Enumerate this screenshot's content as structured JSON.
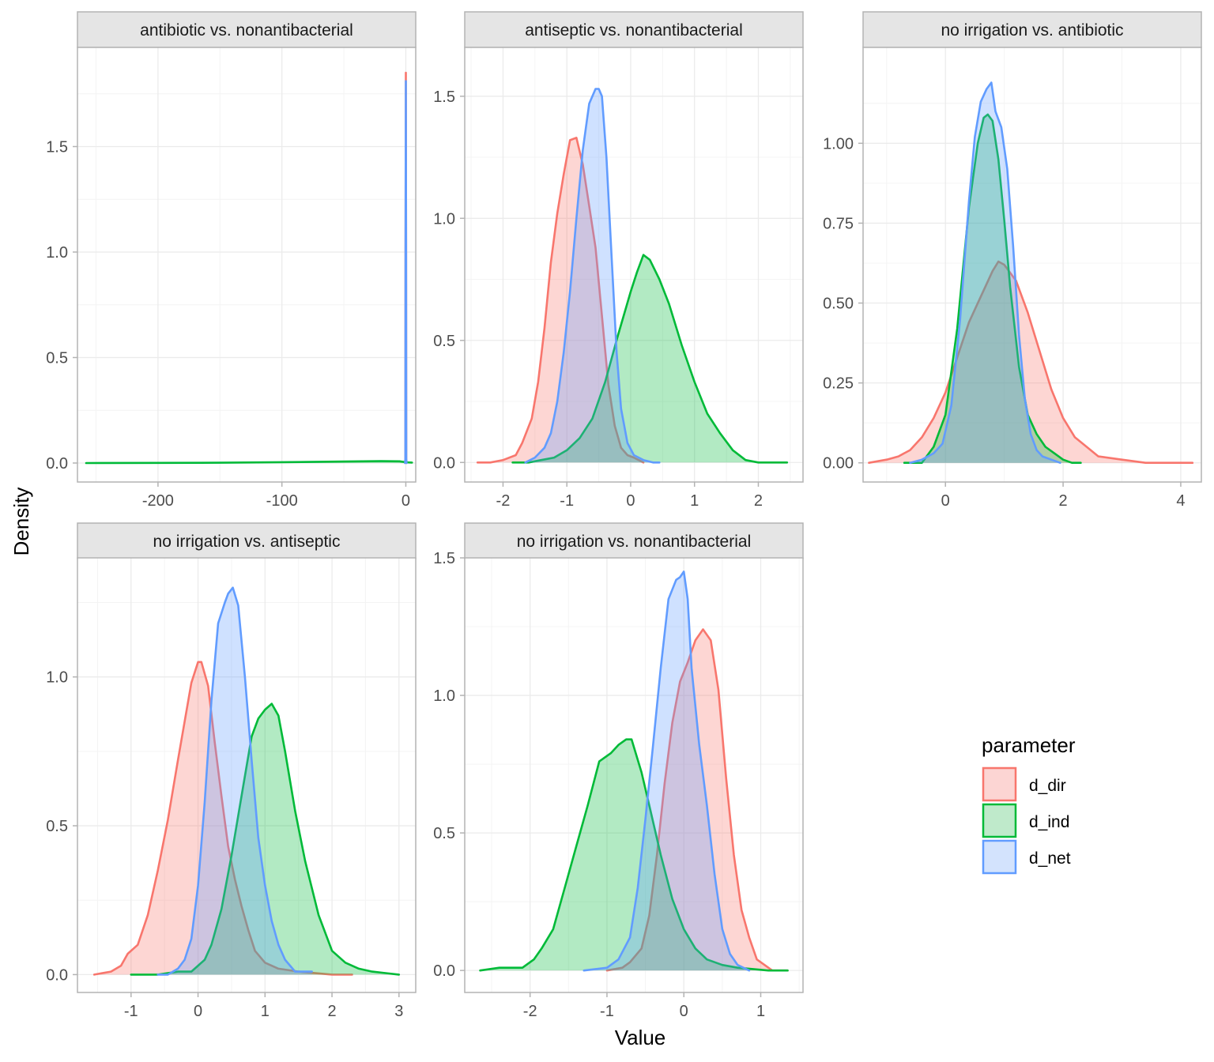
{
  "chart_data": {
    "type": "area",
    "subtype": "faceted density plot",
    "xlabel": "Value",
    "ylabel": "Density",
    "grid": true,
    "legend": {
      "title": "parameter",
      "placement": "right",
      "entries": [
        {
          "name": "d_dir",
          "line_color": "#F8766D",
          "fill_color": "#FCD5D3"
        },
        {
          "name": "d_ind",
          "line_color": "#00BA38",
          "fill_color": "#BFEACB"
        },
        {
          "name": "d_net",
          "line_color": "#619CFF",
          "fill_color": "#D3E3FD"
        }
      ]
    },
    "fill_opacity": 0.3,
    "panels": [
      {
        "title": "antibiotic vs. nonantibacterial",
        "xlim": [
          -265,
          8
        ],
        "ylim": [
          -0.09,
          1.97
        ],
        "xticks": [
          -200,
          -100,
          0
        ],
        "xtick_labels": [
          "-200",
          "-100",
          "0"
        ],
        "yticks": [
          0.0,
          0.5,
          1.0,
          1.5
        ],
        "ytick_labels": [
          "0.0",
          "0.5",
          "1.0",
          "1.5"
        ],
        "series": [
          {
            "name": "d_dir",
            "x": [
              -0.6,
              -0.35,
              -0.25,
              0,
              0.25,
              0.35,
              0.6
            ],
            "y": [
              0,
              0.02,
              1.0,
              1.85,
              1.0,
              0.02,
              0
            ]
          },
          {
            "name": "d_ind",
            "x": [
              -258,
              -200,
              -150,
              -100,
              -50,
              -20,
              -5,
              0,
              2,
              5
            ],
            "y": [
              0,
              0.0005,
              0.0015,
              0.004,
              0.007,
              0.009,
              0.008,
              0.004,
              0.003,
              0.002
            ]
          },
          {
            "name": "d_net",
            "x": [
              -0.6,
              -0.35,
              -0.25,
              0,
              0.25,
              0.35,
              0.6
            ],
            "y": [
              0,
              0.02,
              1.0,
              1.81,
              1.0,
              0.02,
              0
            ]
          }
        ]
      },
      {
        "title": "antiseptic vs. nonantibacterial",
        "xlim": [
          -2.6,
          2.7
        ],
        "ylim": [
          -0.08,
          1.7
        ],
        "xticks": [
          -2,
          -1,
          0,
          1,
          2
        ],
        "xtick_labels": [
          "-2",
          "-1",
          "0",
          "1",
          "2"
        ],
        "yticks": [
          0.0,
          0.5,
          1.0,
          1.5
        ],
        "ytick_labels": [
          "0.0",
          "0.5",
          "1.0",
          "1.5"
        ],
        "series": [
          {
            "name": "d_dir",
            "x": [
              -2.4,
              -2.2,
              -2.0,
              -1.8,
              -1.7,
              -1.55,
              -1.45,
              -1.35,
              -1.25,
              -1.15,
              -1.05,
              -0.95,
              -0.85,
              -0.75,
              -0.65,
              -0.55,
              -0.45,
              -0.35,
              -0.25,
              -0.15,
              -0.05,
              0.05,
              0.2
            ],
            "y": [
              0.0,
              0.0,
              0.01,
              0.03,
              0.08,
              0.18,
              0.33,
              0.55,
              0.82,
              1.02,
              1.18,
              1.32,
              1.33,
              1.22,
              1.05,
              0.88,
              0.6,
              0.32,
              0.15,
              0.06,
              0.03,
              0.02,
              0.0
            ]
          },
          {
            "name": "d_ind",
            "x": [
              -1.85,
              -1.6,
              -1.4,
              -1.2,
              -1.0,
              -0.8,
              -0.6,
              -0.4,
              -0.2,
              0.0,
              0.1,
              0.2,
              0.3,
              0.45,
              0.6,
              0.8,
              1.0,
              1.2,
              1.4,
              1.6,
              1.8,
              2.0,
              2.2,
              2.45
            ],
            "y": [
              0.0,
              0.0,
              0.01,
              0.02,
              0.05,
              0.1,
              0.18,
              0.33,
              0.52,
              0.7,
              0.78,
              0.85,
              0.83,
              0.75,
              0.65,
              0.48,
              0.33,
              0.2,
              0.12,
              0.05,
              0.01,
              0.0,
              0.0,
              0.0
            ]
          },
          {
            "name": "d_net",
            "x": [
              -1.65,
              -1.5,
              -1.35,
              -1.25,
              -1.15,
              -1.05,
              -0.95,
              -0.85,
              -0.75,
              -0.65,
              -0.55,
              -0.5,
              -0.45,
              -0.38,
              -0.3,
              -0.22,
              -0.15,
              -0.05,
              0.05,
              0.2,
              0.35,
              0.45
            ],
            "y": [
              0.0,
              0.02,
              0.06,
              0.12,
              0.25,
              0.45,
              0.7,
              1.0,
              1.28,
              1.47,
              1.53,
              1.53,
              1.5,
              1.25,
              0.85,
              0.45,
              0.22,
              0.08,
              0.03,
              0.01,
              0.0,
              0.0
            ]
          }
        ]
      },
      {
        "title": "no irrigation vs. antibiotic",
        "xlim": [
          -1.4,
          4.35
        ],
        "ylim": [
          -0.06,
          1.3
        ],
        "xticks": [
          0,
          2,
          4
        ],
        "xtick_labels": [
          "0",
          "2",
          "4"
        ],
        "yticks": [
          0.0,
          0.25,
          0.5,
          0.75,
          1.0
        ],
        "ytick_labels": [
          "0.00",
          "0.25",
          "0.50",
          "0.75",
          "1.00"
        ],
        "series": [
          {
            "name": "d_dir",
            "x": [
              -1.3,
              -1.0,
              -0.8,
              -0.6,
              -0.4,
              -0.2,
              0.0,
              0.2,
              0.4,
              0.6,
              0.8,
              0.9,
              1.0,
              1.2,
              1.4,
              1.6,
              1.8,
              2.0,
              2.2,
              2.4,
              2.6,
              3.0,
              3.4,
              4.2
            ],
            "y": [
              0.0,
              0.01,
              0.02,
              0.04,
              0.08,
              0.14,
              0.22,
              0.33,
              0.44,
              0.52,
              0.6,
              0.63,
              0.62,
              0.57,
              0.47,
              0.35,
              0.23,
              0.14,
              0.08,
              0.05,
              0.02,
              0.01,
              0.0,
              0.0
            ]
          },
          {
            "name": "d_ind",
            "x": [
              -0.7,
              -0.4,
              -0.2,
              0.0,
              0.2,
              0.4,
              0.55,
              0.65,
              0.72,
              0.8,
              0.9,
              1.0,
              1.1,
              1.25,
              1.4,
              1.55,
              1.7,
              1.85,
              2.0,
              2.15,
              2.3
            ],
            "y": [
              0.0,
              0.0,
              0.05,
              0.15,
              0.42,
              0.8,
              1.0,
              1.08,
              1.09,
              1.07,
              0.95,
              0.76,
              0.55,
              0.3,
              0.15,
              0.09,
              0.05,
              0.03,
              0.01,
              0.0,
              0.0
            ]
          },
          {
            "name": "d_net",
            "x": [
              -0.6,
              -0.4,
              -0.2,
              -0.05,
              0.1,
              0.25,
              0.4,
              0.5,
              0.6,
              0.7,
              0.78,
              0.85,
              0.95,
              1.05,
              1.15,
              1.25,
              1.35,
              1.45,
              1.55,
              1.65,
              1.8,
              1.95
            ],
            "y": [
              0.0,
              0.01,
              0.03,
              0.06,
              0.18,
              0.45,
              0.82,
              1.02,
              1.13,
              1.17,
              1.19,
              1.1,
              1.05,
              0.92,
              0.68,
              0.4,
              0.2,
              0.09,
              0.04,
              0.02,
              0.01,
              0.0
            ]
          }
        ]
      },
      {
        "title": "no irrigation vs. antiseptic",
        "xlim": [
          -1.8,
          3.25
        ],
        "ylim": [
          -0.06,
          1.4
        ],
        "xticks": [
          -1,
          0,
          1,
          2,
          3
        ],
        "xtick_labels": [
          "-1",
          "0",
          "1",
          "2",
          "3"
        ],
        "yticks": [
          0.0,
          0.5,
          1.0
        ],
        "ytick_labels": [
          "0.0",
          "0.5",
          "1.0"
        ],
        "series": [
          {
            "name": "d_dir",
            "x": [
              -1.55,
              -1.3,
              -1.15,
              -1.05,
              -0.9,
              -0.75,
              -0.6,
              -0.45,
              -0.3,
              -0.2,
              -0.1,
              0.0,
              0.05,
              0.15,
              0.25,
              0.35,
              0.45,
              0.55,
              0.65,
              0.75,
              0.85,
              1.0,
              1.2,
              1.5,
              2.0,
              2.3
            ],
            "y": [
              0.0,
              0.01,
              0.03,
              0.07,
              0.1,
              0.2,
              0.35,
              0.52,
              0.72,
              0.85,
              0.98,
              1.05,
              1.05,
              0.97,
              0.78,
              0.6,
              0.43,
              0.32,
              0.23,
              0.15,
              0.08,
              0.04,
              0.02,
              0.01,
              0.0,
              0.0
            ]
          },
          {
            "name": "d_ind",
            "x": [
              -1.0,
              -0.6,
              -0.3,
              -0.1,
              0.0,
              0.1,
              0.2,
              0.35,
              0.5,
              0.65,
              0.8,
              0.9,
              1.0,
              1.1,
              1.2,
              1.3,
              1.45,
              1.6,
              1.8,
              2.0,
              2.2,
              2.4,
              2.6,
              2.8,
              3.0
            ],
            "y": [
              0.0,
              0.0,
              0.01,
              0.01,
              0.03,
              0.05,
              0.1,
              0.22,
              0.4,
              0.6,
              0.8,
              0.86,
              0.89,
              0.91,
              0.87,
              0.75,
              0.55,
              0.38,
              0.2,
              0.08,
              0.04,
              0.02,
              0.01,
              0.005,
              0.0
            ]
          },
          {
            "name": "d_net",
            "x": [
              -0.6,
              -0.45,
              -0.3,
              -0.2,
              -0.1,
              0.0,
              0.1,
              0.2,
              0.3,
              0.4,
              0.45,
              0.52,
              0.6,
              0.7,
              0.8,
              0.9,
              1.0,
              1.1,
              1.2,
              1.3,
              1.45,
              1.6,
              1.7
            ],
            "y": [
              0.0,
              0.0,
              0.02,
              0.05,
              0.12,
              0.3,
              0.58,
              0.92,
              1.18,
              1.25,
              1.28,
              1.3,
              1.24,
              1.0,
              0.72,
              0.46,
              0.3,
              0.18,
              0.1,
              0.05,
              0.01,
              0.01,
              0.01
            ]
          }
        ]
      },
      {
        "title": "no irrigation vs. nonantibacterial",
        "xlim": [
          -2.85,
          1.55
        ],
        "ylim": [
          -0.08,
          1.5
        ],
        "xticks": [
          -2,
          -1,
          0,
          1
        ],
        "xtick_labels": [
          "-2",
          "-1",
          "0",
          "1"
        ],
        "yticks": [
          0.0,
          0.5,
          1.0,
          1.5
        ],
        "ytick_labels": [
          "0.0",
          "0.5",
          "1.0",
          "1.5"
        ],
        "series": [
          {
            "name": "d_dir",
            "x": [
              -1.0,
              -0.8,
              -0.7,
              -0.55,
              -0.45,
              -0.35,
              -0.25,
              -0.15,
              -0.05,
              0.05,
              0.15,
              0.25,
              0.35,
              0.45,
              0.55,
              0.65,
              0.75,
              0.85,
              0.95,
              1.05,
              1.15,
              1.35
            ],
            "y": [
              0.0,
              0.01,
              0.03,
              0.08,
              0.2,
              0.42,
              0.68,
              0.9,
              1.05,
              1.12,
              1.2,
              1.24,
              1.2,
              1.02,
              0.7,
              0.42,
              0.22,
              0.12,
              0.04,
              0.02,
              0.0,
              0.0
            ]
          },
          {
            "name": "d_ind",
            "x": [
              -2.65,
              -2.4,
              -2.1,
              -1.95,
              -1.85,
              -1.7,
              -1.55,
              -1.4,
              -1.25,
              -1.1,
              -0.95,
              -0.85,
              -0.75,
              -0.68,
              -0.55,
              -0.45,
              -0.3,
              -0.15,
              0.0,
              0.15,
              0.3,
              0.5,
              0.7,
              0.9,
              1.1,
              1.35
            ],
            "y": [
              0.0,
              0.01,
              0.01,
              0.04,
              0.08,
              0.15,
              0.3,
              0.45,
              0.6,
              0.76,
              0.79,
              0.82,
              0.84,
              0.84,
              0.72,
              0.6,
              0.42,
              0.26,
              0.15,
              0.08,
              0.04,
              0.02,
              0.01,
              0.005,
              0.0,
              0.0
            ]
          },
          {
            "name": "d_net",
            "x": [
              -1.3,
              -1.0,
              -0.85,
              -0.7,
              -0.6,
              -0.5,
              -0.4,
              -0.3,
              -0.2,
              -0.1,
              -0.05,
              0.0,
              0.05,
              0.1,
              0.2,
              0.3,
              0.4,
              0.5,
              0.6,
              0.7,
              0.85
            ],
            "y": [
              0.0,
              0.01,
              0.04,
              0.12,
              0.3,
              0.55,
              0.82,
              1.1,
              1.35,
              1.42,
              1.43,
              1.45,
              1.35,
              1.1,
              0.82,
              0.6,
              0.35,
              0.15,
              0.06,
              0.02,
              0.0
            ]
          }
        ]
      }
    ]
  }
}
